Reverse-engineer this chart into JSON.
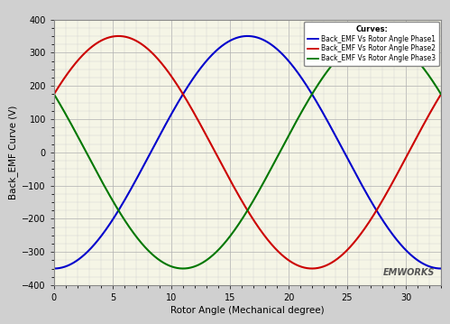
{
  "title": "",
  "xlabel": "Rotor Angle (Mechanical degree)",
  "ylabel": "Back_EMF Curve (V)",
  "xlim": [
    0,
    33
  ],
  "ylim": [
    -400,
    400
  ],
  "xticks": [
    0,
    5,
    10,
    15,
    20,
    25,
    30
  ],
  "yticks": [
    -400,
    -300,
    -200,
    -100,
    0,
    100,
    200,
    300,
    400
  ],
  "amplitude": 350,
  "period": 33,
  "phase1_phase_deg": -90,
  "phase2_phase_deg": 30,
  "phase3_phase_deg": 150,
  "phase1_color": "#0000cc",
  "phase2_color": "#cc0000",
  "phase3_color": "#007700",
  "legend_title": "Curves:",
  "legend_labels": [
    "Back_EMF Vs Rotor Angle Phase1",
    "Back_EMF Vs Rotor Angle Phase2",
    "Back_EMF Vs Rotor Angle Phase3"
  ],
  "bg_color": "#f5f5e6",
  "grid_major_color": "#b0b0b0",
  "grid_minor_color": "#d0d0d0",
  "linewidth": 1.5,
  "n_points": 1000,
  "window_bg": "#d0d0d0",
  "plot_frame_color": "#ffffe0"
}
